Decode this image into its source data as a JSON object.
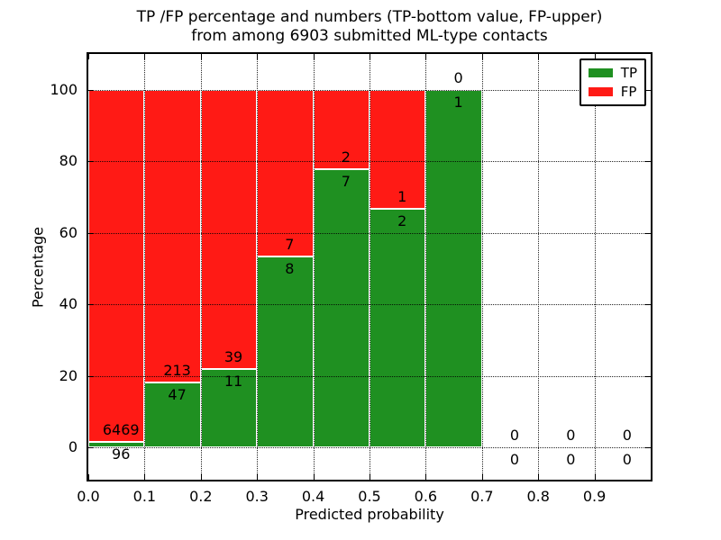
{
  "figure": {
    "title_line1": "TP /FP percentage and numbers (TP-bottom value, FP-upper)",
    "title_line2": "from among 6903 submitted ML-type contacts",
    "xlabel": "Predicted probability",
    "ylabel": "Percentage"
  },
  "legend": {
    "items": [
      {
        "label": "TP",
        "color": "#1f9021"
      },
      {
        "label": "FP",
        "color": "#ff1a15"
      }
    ]
  },
  "chart_data": {
    "type": "bar",
    "subtype": "stacked-percentage",
    "title": "TP /FP percentage and numbers (TP-bottom value, FP-upper) from among 6903 submitted ML-type contacts",
    "xlabel": "Predicted probability",
    "ylabel": "Percentage",
    "total_contacts": 6903,
    "xlim": [
      0,
      1.0
    ],
    "ylim": [
      -9,
      110
    ],
    "x_tick_values": [
      0,
      0.1,
      0.2,
      0.3,
      0.4,
      0.5,
      0.6,
      0.7,
      0.8,
      0.9
    ],
    "x_tick_labels": [
      "0.0",
      "0.1",
      "0.2",
      "0.3",
      "0.4",
      "0.5",
      "0.6",
      "0.7",
      "0.8",
      "0.9"
    ],
    "y_tick_values": [
      0,
      20,
      40,
      60,
      80,
      100
    ],
    "y_tick_labels": [
      "0",
      "20",
      "40",
      "60",
      "80",
      "100"
    ],
    "grid": "dotted",
    "grid_above_bars": true,
    "legend_position": "upper-right",
    "series": [
      {
        "name": "TP",
        "color": "#1f9021",
        "position": "bottom"
      },
      {
        "name": "FP",
        "color": "#ff1a15",
        "position": "top"
      }
    ],
    "bins": [
      {
        "x0": 0.0,
        "x1": 0.1,
        "tp": 96,
        "fp": 6469,
        "tp_pct": 1.46,
        "fp_pct": 98.54
      },
      {
        "x0": 0.1,
        "x1": 0.2,
        "tp": 47,
        "fp": 213,
        "tp_pct": 18.08,
        "fp_pct": 81.92
      },
      {
        "x0": 0.2,
        "x1": 0.3,
        "tp": 11,
        "fp": 39,
        "tp_pct": 22.0,
        "fp_pct": 78.0
      },
      {
        "x0": 0.3,
        "x1": 0.4,
        "tp": 8,
        "fp": 7,
        "tp_pct": 53.33,
        "fp_pct": 46.67
      },
      {
        "x0": 0.4,
        "x1": 0.5,
        "tp": 7,
        "fp": 2,
        "tp_pct": 77.78,
        "fp_pct": 22.22
      },
      {
        "x0": 0.5,
        "x1": 0.6,
        "tp": 2,
        "fp": 1,
        "tp_pct": 66.67,
        "fp_pct": 33.33
      },
      {
        "x0": 0.6,
        "x1": 0.7,
        "tp": 1,
        "fp": 0,
        "tp_pct": 100.0,
        "fp_pct": 0.0
      },
      {
        "x0": 0.7,
        "x1": 0.8,
        "tp": 0,
        "fp": 0,
        "tp_pct": 0.0,
        "fp_pct": 0.0
      },
      {
        "x0": 0.8,
        "x1": 0.9,
        "tp": 0,
        "fp": 0,
        "tp_pct": 0.0,
        "fp_pct": 0.0
      },
      {
        "x0": 0.9,
        "x1": 1.0,
        "tp": 0,
        "fp": 0,
        "tp_pct": 0.0,
        "fp_pct": 0.0
      }
    ]
  }
}
